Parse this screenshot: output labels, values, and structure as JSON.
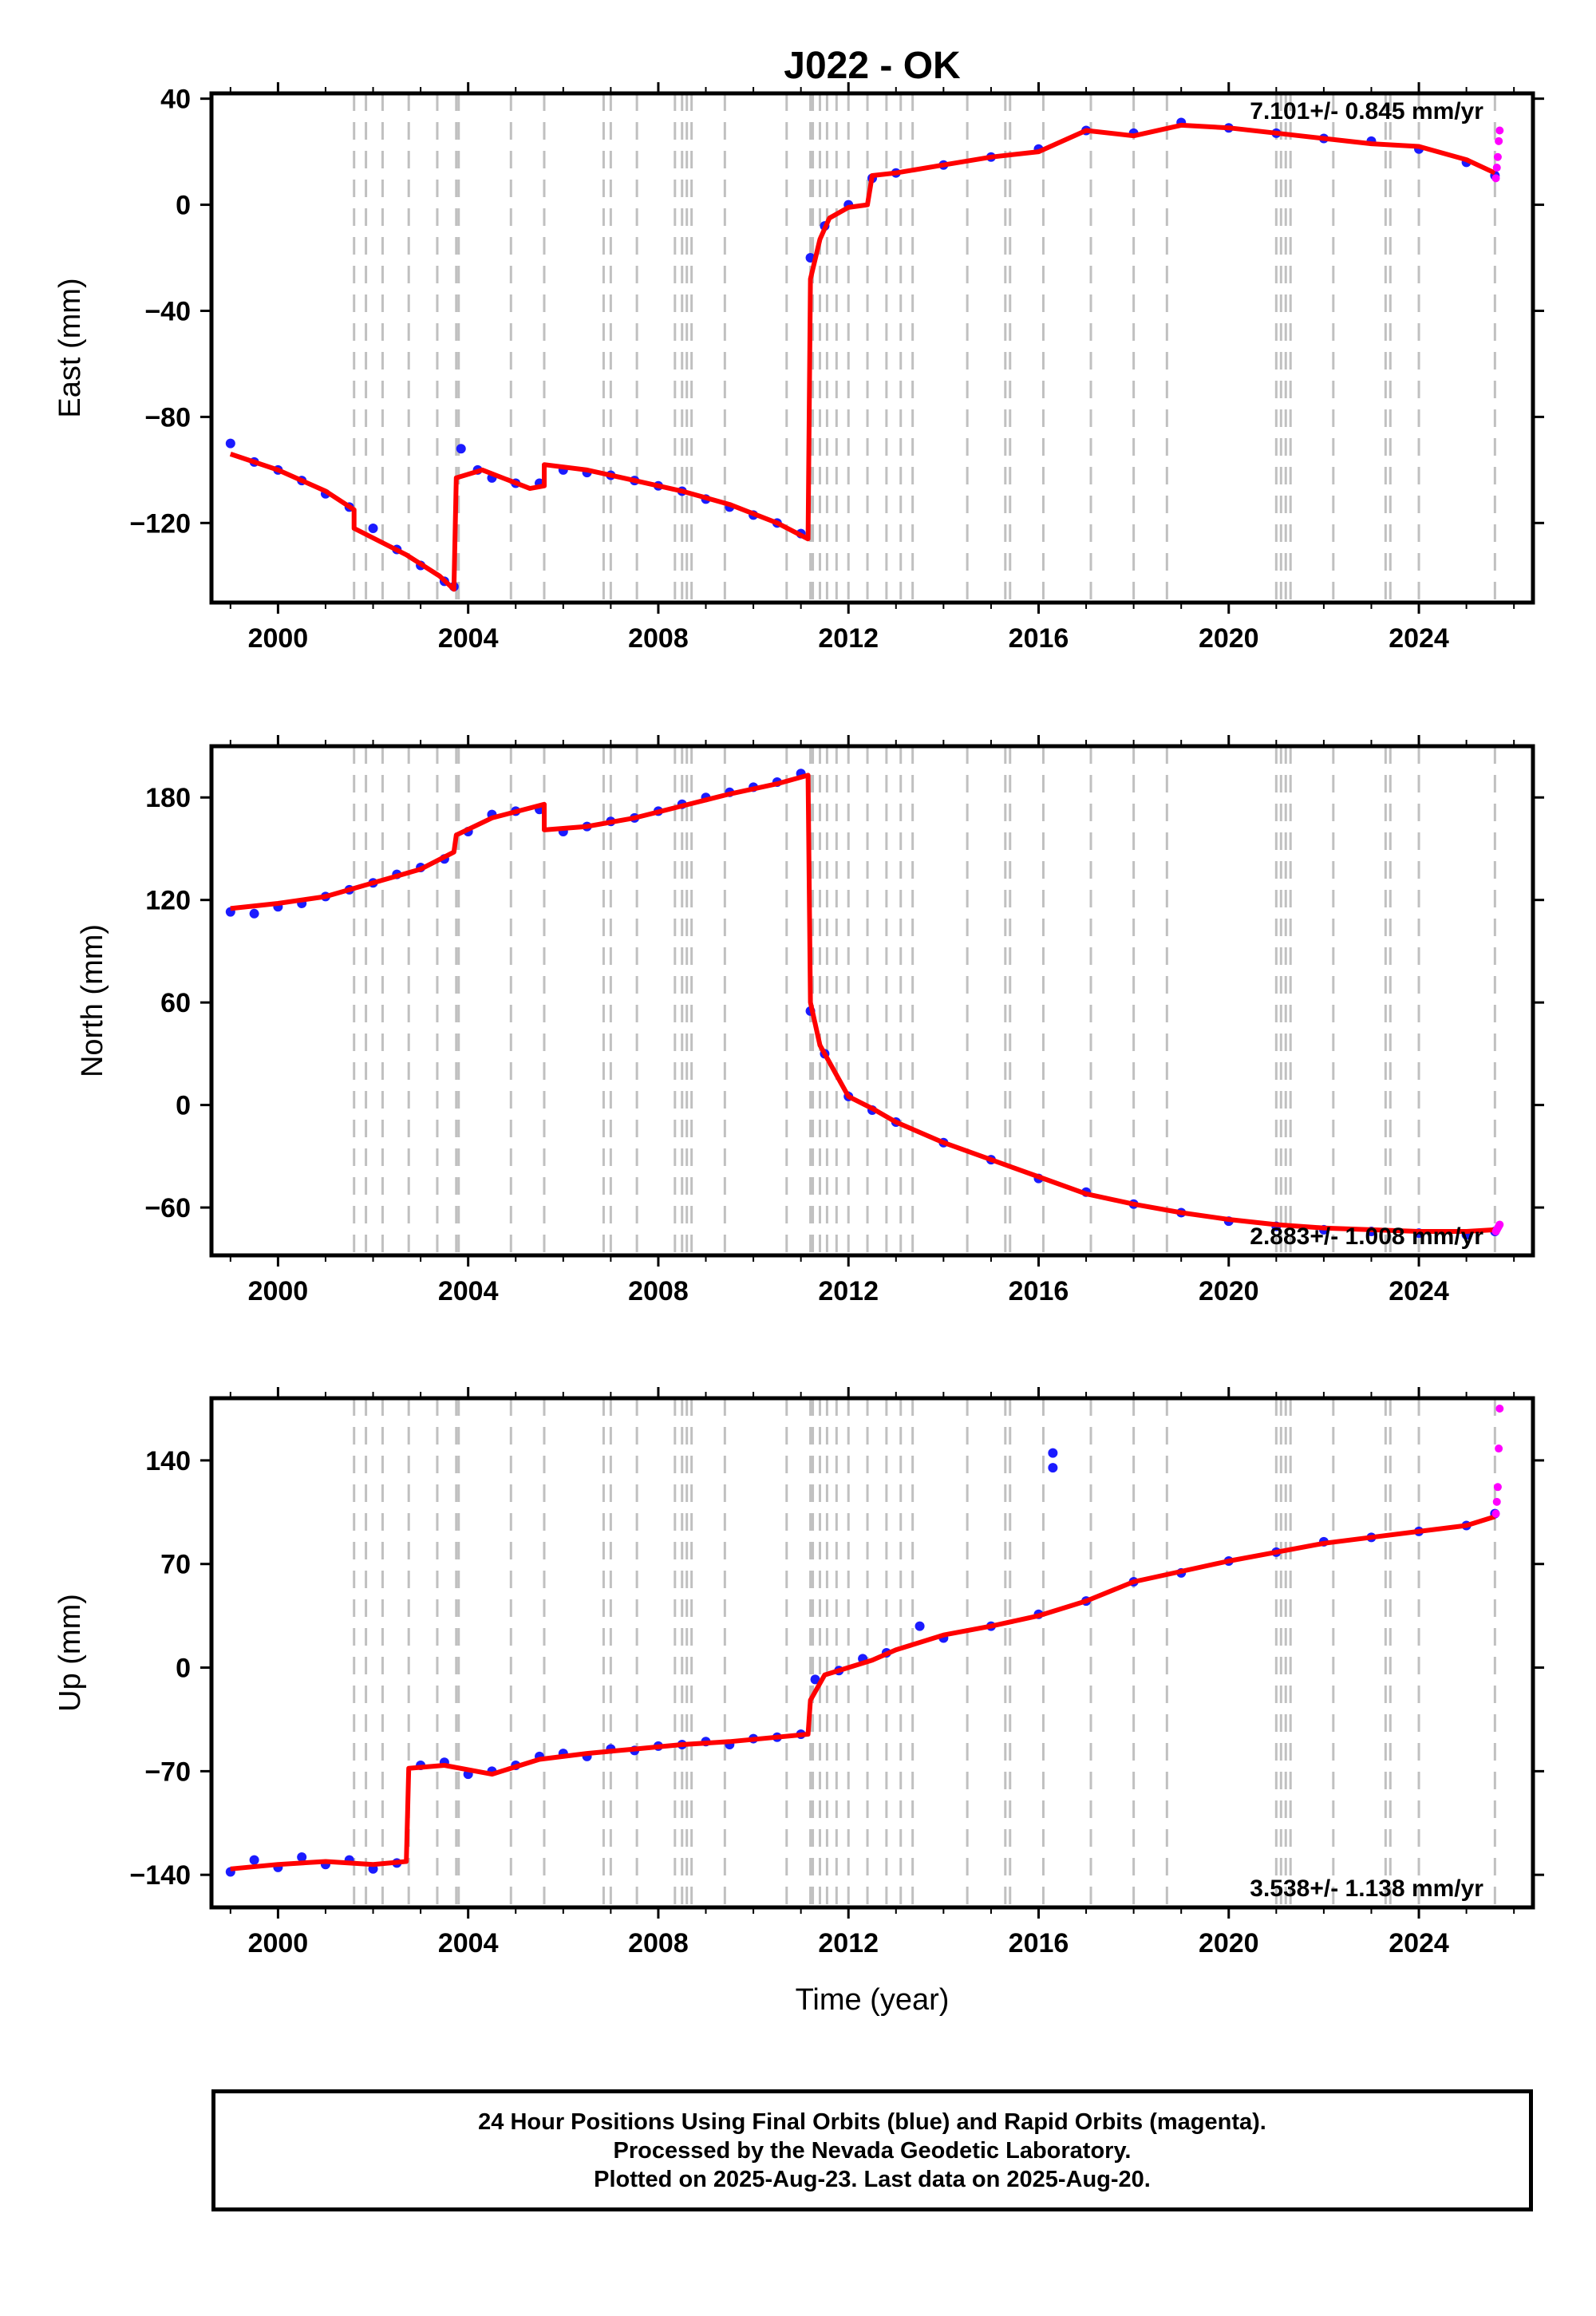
{
  "title": "J022 - OK",
  "xlabel": "Time (year)",
  "colors": {
    "final_orbits": "#1b1bff",
    "rapid_orbits": "#ff00ff",
    "model": "#ff0000",
    "events": "#c0c0c0"
  },
  "caption": {
    "line1": "24 Hour Positions Using Final Orbits (blue) and Rapid Orbits (magenta).",
    "line2": "Processed by the Nevada Geodetic Laboratory.",
    "line3": "Plotted on 2025-Aug-23. Last data on 2025-Aug-20."
  },
  "chart_data": [
    {
      "type": "scatter",
      "panel": "east",
      "ylabel": "East (mm)",
      "rate_label": "7.101+/- 0.845 mm/yr",
      "rate_position": "top-right",
      "xlim": [
        1998.6,
        2026.4
      ],
      "ylim": [
        -150,
        42
      ],
      "xticks": [
        2000,
        2004,
        2008,
        2012,
        2016,
        2020,
        2024
      ],
      "yticks": [
        -120,
        -80,
        -40,
        0,
        40
      ],
      "event_lines": [
        2001.6,
        2001.85,
        2002.2,
        2002.75,
        2003.35,
        2003.75,
        2003.8,
        2004.9,
        2005.6,
        2006.85,
        2007.0,
        2007.55,
        2008.35,
        2008.5,
        2008.6,
        2008.7,
        2009.4,
        2010.7,
        2011.2,
        2011.25,
        2011.4,
        2011.55,
        2011.75,
        2012.0,
        2012.4,
        2012.8,
        2013.1,
        2013.35,
        2014.5,
        2015.3,
        2015.4,
        2016.1,
        2017.1,
        2018.0,
        2018.7,
        2021.0,
        2021.1,
        2021.2,
        2021.3,
        2022.2,
        2023.3,
        2023.4,
        2024.0,
        2025.6
      ],
      "model": [
        [
          1999.0,
          -94
        ],
        [
          2000.0,
          -100
        ],
        [
          2001.0,
          -108
        ],
        [
          2001.6,
          -115
        ],
        [
          2001.6,
          -122
        ],
        [
          2002.7,
          -132
        ],
        [
          2003.4,
          -140
        ],
        [
          2003.7,
          -145
        ],
        [
          2003.75,
          -103
        ],
        [
          2004.3,
          -100
        ],
        [
          2005.3,
          -107
        ],
        [
          2005.6,
          -106
        ],
        [
          2005.6,
          -98
        ],
        [
          2006.5,
          -100
        ],
        [
          2007.5,
          -104
        ],
        [
          2008.5,
          -108
        ],
        [
          2009.5,
          -113
        ],
        [
          2010.5,
          -120
        ],
        [
          2011.15,
          -126
        ],
        [
          2011.2,
          -28
        ],
        [
          2011.4,
          -13
        ],
        [
          2011.6,
          -5
        ],
        [
          2012.0,
          -1
        ],
        [
          2012.4,
          0
        ],
        [
          2012.5,
          11
        ],
        [
          2013.0,
          12
        ],
        [
          2014.0,
          15
        ],
        [
          2015.0,
          18
        ],
        [
          2016.0,
          20
        ],
        [
          2017.0,
          28
        ],
        [
          2018.0,
          26
        ],
        [
          2019.0,
          30
        ],
        [
          2020.0,
          29
        ],
        [
          2021.0,
          27
        ],
        [
          2022.0,
          25
        ],
        [
          2023.0,
          23
        ],
        [
          2024.0,
          22
        ],
        [
          2025.0,
          17
        ],
        [
          2025.6,
          12
        ]
      ],
      "final_points": [
        [
          1999.0,
          -90
        ],
        [
          1999.5,
          -97
        ],
        [
          2000.0,
          -100
        ],
        [
          2000.5,
          -104
        ],
        [
          2001.0,
          -109
        ],
        [
          2001.5,
          -114
        ],
        [
          2002.0,
          -122
        ],
        [
          2002.5,
          -130
        ],
        [
          2003.0,
          -136
        ],
        [
          2003.5,
          -142
        ],
        [
          2003.7,
          -144
        ],
        [
          2003.85,
          -92
        ],
        [
          2004.2,
          -100
        ],
        [
          2004.5,
          -103
        ],
        [
          2005.0,
          -105
        ],
        [
          2005.5,
          -105
        ],
        [
          2006.0,
          -100
        ],
        [
          2006.5,
          -101
        ],
        [
          2007.0,
          -102
        ],
        [
          2007.5,
          -104
        ],
        [
          2008.0,
          -106
        ],
        [
          2008.5,
          -108
        ],
        [
          2009.0,
          -111
        ],
        [
          2009.5,
          -114
        ],
        [
          2010.0,
          -117
        ],
        [
          2010.5,
          -120
        ],
        [
          2011.0,
          -124
        ],
        [
          2011.2,
          -20
        ],
        [
          2011.5,
          -8
        ],
        [
          2012.0,
          0
        ],
        [
          2012.5,
          10
        ],
        [
          2013.0,
          12
        ],
        [
          2014.0,
          15
        ],
        [
          2015.0,
          18
        ],
        [
          2016.0,
          21
        ],
        [
          2017.0,
          28
        ],
        [
          2018.0,
          27
        ],
        [
          2019.0,
          31
        ],
        [
          2020.0,
          29
        ],
        [
          2021.0,
          27
        ],
        [
          2022.0,
          25
        ],
        [
          2023.0,
          24
        ],
        [
          2024.0,
          21
        ],
        [
          2025.0,
          16
        ],
        [
          2025.6,
          11
        ]
      ],
      "rapid_points": [
        [
          2025.62,
          10
        ],
        [
          2025.64,
          14
        ],
        [
          2025.66,
          18
        ],
        [
          2025.68,
          24
        ],
        [
          2025.7,
          28
        ]
      ]
    },
    {
      "type": "scatter",
      "panel": "north",
      "ylabel": "North (mm)",
      "rate_label": "2.883+/- 1.008 mm/yr",
      "rate_position": "bottom-right",
      "xlim": [
        1998.6,
        2026.4
      ],
      "ylim": [
        -88,
        210
      ],
      "xticks": [
        2000,
        2004,
        2008,
        2012,
        2016,
        2020,
        2024
      ],
      "yticks": [
        -60,
        0,
        60,
        120,
        180
      ],
      "event_lines": [
        2001.6,
        2001.85,
        2002.2,
        2002.75,
        2003.35,
        2003.75,
        2003.8,
        2004.9,
        2005.6,
        2006.85,
        2007.0,
        2007.55,
        2008.35,
        2008.5,
        2008.6,
        2008.7,
        2009.4,
        2010.7,
        2011.2,
        2011.25,
        2011.4,
        2011.55,
        2011.75,
        2012.0,
        2012.4,
        2012.8,
        2013.1,
        2013.35,
        2014.5,
        2015.3,
        2015.4,
        2016.1,
        2017.1,
        2018.0,
        2018.7,
        2021.0,
        2021.1,
        2021.2,
        2021.3,
        2022.2,
        2023.3,
        2023.4,
        2024.0,
        2025.6
      ],
      "model": [
        [
          1999.0,
          115
        ],
        [
          2000.0,
          118
        ],
        [
          2001.0,
          122
        ],
        [
          2002.0,
          130
        ],
        [
          2003.0,
          138
        ],
        [
          2003.7,
          148
        ],
        [
          2003.75,
          158
        ],
        [
          2004.5,
          168
        ],
        [
          2005.6,
          176
        ],
        [
          2005.6,
          161
        ],
        [
          2006.5,
          163
        ],
        [
          2007.5,
          168
        ],
        [
          2008.5,
          175
        ],
        [
          2009.5,
          182
        ],
        [
          2010.5,
          188
        ],
        [
          2011.15,
          193
        ],
        [
          2011.2,
          60
        ],
        [
          2011.4,
          35
        ],
        [
          2011.8,
          15
        ],
        [
          2012.0,
          5
        ],
        [
          2012.5,
          -2
        ],
        [
          2013.0,
          -10
        ],
        [
          2014.0,
          -22
        ],
        [
          2015.0,
          -32
        ],
        [
          2016.0,
          -42
        ],
        [
          2017.0,
          -52
        ],
        [
          2018.0,
          -58
        ],
        [
          2019.0,
          -63
        ],
        [
          2020.0,
          -67
        ],
        [
          2021.0,
          -70
        ],
        [
          2022.0,
          -72
        ],
        [
          2023.0,
          -73
        ],
        [
          2024.0,
          -74
        ],
        [
          2025.0,
          -74
        ],
        [
          2025.6,
          -73
        ]
      ],
      "final_points": [
        [
          1999.0,
          113
        ],
        [
          1999.5,
          112
        ],
        [
          2000.0,
          116
        ],
        [
          2000.5,
          118
        ],
        [
          2001.0,
          122
        ],
        [
          2001.5,
          126
        ],
        [
          2002.0,
          130
        ],
        [
          2002.5,
          135
        ],
        [
          2003.0,
          139
        ],
        [
          2003.5,
          144
        ],
        [
          2004.0,
          160
        ],
        [
          2004.5,
          170
        ],
        [
          2005.0,
          172
        ],
        [
          2005.5,
          173
        ],
        [
          2006.0,
          160
        ],
        [
          2006.5,
          163
        ],
        [
          2007.0,
          166
        ],
        [
          2007.5,
          168
        ],
        [
          2008.0,
          172
        ],
        [
          2008.5,
          176
        ],
        [
          2009.0,
          180
        ],
        [
          2009.5,
          183
        ],
        [
          2010.0,
          186
        ],
        [
          2010.5,
          189
        ],
        [
          2011.0,
          194
        ],
        [
          2011.2,
          55
        ],
        [
          2011.5,
          30
        ],
        [
          2012.0,
          5
        ],
        [
          2012.5,
          -3
        ],
        [
          2013.0,
          -10
        ],
        [
          2014.0,
          -22
        ],
        [
          2015.0,
          -32
        ],
        [
          2016.0,
          -43
        ],
        [
          2017.0,
          -51
        ],
        [
          2018.0,
          -58
        ],
        [
          2019.0,
          -63
        ],
        [
          2020.0,
          -68
        ],
        [
          2021.0,
          -71
        ],
        [
          2022.0,
          -73
        ],
        [
          2023.0,
          -74
        ],
        [
          2024.0,
          -75
        ],
        [
          2025.0,
          -76
        ],
        [
          2025.6,
          -74
        ]
      ],
      "rapid_points": [
        [
          2025.62,
          -74
        ],
        [
          2025.64,
          -73
        ],
        [
          2025.66,
          -72
        ],
        [
          2025.68,
          -71
        ],
        [
          2025.7,
          -70
        ]
      ]
    },
    {
      "type": "scatter",
      "panel": "up",
      "ylabel": "Up (mm)",
      "rate_label": "3.538+/- 1.138 mm/yr",
      "rate_position": "bottom-right",
      "xlim": [
        1998.6,
        2026.4
      ],
      "ylim": [
        -162,
        182
      ],
      "xticks": [
        2000,
        2004,
        2008,
        2012,
        2016,
        2020,
        2024
      ],
      "yticks": [
        -140,
        -70,
        0,
        70,
        140
      ],
      "event_lines": [
        2001.6,
        2001.85,
        2002.2,
        2002.75,
        2003.35,
        2003.75,
        2003.8,
        2004.9,
        2005.6,
        2006.85,
        2007.0,
        2007.55,
        2008.35,
        2008.5,
        2008.6,
        2008.7,
        2009.4,
        2010.7,
        2011.2,
        2011.25,
        2011.4,
        2011.55,
        2011.75,
        2012.0,
        2012.4,
        2012.8,
        2013.1,
        2013.35,
        2014.5,
        2015.3,
        2015.4,
        2016.1,
        2017.1,
        2018.0,
        2018.7,
        2021.0,
        2021.1,
        2021.2,
        2021.3,
        2022.2,
        2023.3,
        2023.4,
        2024.0,
        2025.6
      ],
      "model": [
        [
          1999.0,
          -136
        ],
        [
          2000.0,
          -133
        ],
        [
          2001.0,
          -131
        ],
        [
          2002.0,
          -133
        ],
        [
          2002.7,
          -131
        ],
        [
          2002.75,
          -68
        ],
        [
          2003.5,
          -66
        ],
        [
          2004.5,
          -72
        ],
        [
          2005.5,
          -62
        ],
        [
          2006.5,
          -58
        ],
        [
          2007.5,
          -55
        ],
        [
          2008.5,
          -52
        ],
        [
          2009.5,
          -50
        ],
        [
          2010.5,
          -47
        ],
        [
          2011.15,
          -45
        ],
        [
          2011.2,
          -22
        ],
        [
          2011.5,
          -5
        ],
        [
          2012.0,
          0
        ],
        [
          2012.5,
          5
        ],
        [
          2013.0,
          12
        ],
        [
          2014.0,
          22
        ],
        [
          2015.0,
          28
        ],
        [
          2016.0,
          35
        ],
        [
          2017.0,
          45
        ],
        [
          2018.0,
          58
        ],
        [
          2019.0,
          65
        ],
        [
          2020.0,
          72
        ],
        [
          2021.0,
          78
        ],
        [
          2022.0,
          84
        ],
        [
          2023.0,
          88
        ],
        [
          2024.0,
          92
        ],
        [
          2025.0,
          96
        ],
        [
          2025.6,
          102
        ]
      ],
      "final_points": [
        [
          1999.0,
          -138
        ],
        [
          1999.5,
          -130
        ],
        [
          2000.0,
          -135
        ],
        [
          2000.5,
          -128
        ],
        [
          2001.0,
          -133
        ],
        [
          2001.5,
          -130
        ],
        [
          2002.0,
          -136
        ],
        [
          2002.5,
          -132
        ],
        [
          2003.0,
          -66
        ],
        [
          2003.5,
          -64
        ],
        [
          2004.0,
          -72
        ],
        [
          2004.5,
          -70
        ],
        [
          2005.0,
          -66
        ],
        [
          2005.5,
          -60
        ],
        [
          2006.0,
          -58
        ],
        [
          2006.5,
          -60
        ],
        [
          2007.0,
          -55
        ],
        [
          2007.5,
          -56
        ],
        [
          2008.0,
          -53
        ],
        [
          2008.5,
          -52
        ],
        [
          2009.0,
          -50
        ],
        [
          2009.5,
          -52
        ],
        [
          2010.0,
          -48
        ],
        [
          2010.5,
          -47
        ],
        [
          2011.0,
          -45
        ],
        [
          2011.3,
          -8
        ],
        [
          2011.8,
          -2
        ],
        [
          2012.3,
          6
        ],
        [
          2012.8,
          10
        ],
        [
          2013.5,
          28
        ],
        [
          2014.0,
          20
        ],
        [
          2015.0,
          28
        ],
        [
          2016.0,
          36
        ],
        [
          2016.3,
          145
        ],
        [
          2016.3,
          135
        ],
        [
          2017.0,
          45
        ],
        [
          2018.0,
          58
        ],
        [
          2019.0,
          64
        ],
        [
          2020.0,
          72
        ],
        [
          2021.0,
          78
        ],
        [
          2022.0,
          85
        ],
        [
          2023.0,
          88
        ],
        [
          2024.0,
          92
        ],
        [
          2025.0,
          96
        ],
        [
          2025.6,
          104
        ]
      ],
      "rapid_points": [
        [
          2025.62,
          104
        ],
        [
          2025.64,
          112
        ],
        [
          2025.66,
          122
        ],
        [
          2025.68,
          148
        ],
        [
          2025.7,
          175
        ]
      ]
    }
  ]
}
